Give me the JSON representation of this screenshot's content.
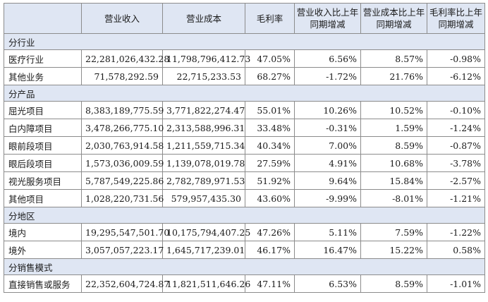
{
  "headers": [
    "",
    "营业收入",
    "营业成本",
    "毛利率",
    "营业收入比上年同期增减",
    "营业成本比上年同期增减",
    "毛利率比上年同期增减"
  ],
  "sections": [
    {
      "title": "分行业",
      "rows": [
        [
          "医疗行业",
          "22,281,026,432.28",
          "11,798,796,412.73",
          "47.05%",
          "6.56%",
          "8.57%",
          "-0.98%"
        ],
        [
          "其他业务",
          "71,578,292.59",
          "22,715,233.53",
          "68.27%",
          "-1.72%",
          "21.76%",
          "-6.12%"
        ]
      ]
    },
    {
      "title": "分产品",
      "rows": [
        [
          "屈光项目",
          "8,383,189,775.59",
          "3,771,822,274.47",
          "55.01%",
          "10.26%",
          "10.52%",
          "-0.10%"
        ],
        [
          "白内障项目",
          "3,478,266,775.10",
          "2,313,588,996.31",
          "33.48%",
          "-0.31%",
          "1.59%",
          "-1.24%"
        ],
        [
          "眼前段项目",
          "2,030,763,914.58",
          "1,211,559,715.34",
          "40.34%",
          "7.00%",
          "8.59%",
          "-0.87%"
        ],
        [
          "眼后段项目",
          "1,573,036,009.59",
          "1,139,078,019.78",
          "27.59%",
          "4.91%",
          "10.68%",
          "-3.78%"
        ],
        [
          "视光服务项目",
          "5,787,549,225.86",
          "2,782,789,971.53",
          "51.92%",
          "9.64%",
          "15.84%",
          "-2.57%"
        ],
        [
          "其他项目",
          "1,028,220,731.56",
          "579,957,435.30",
          "43.60%",
          "-9.99%",
          "-8.01%",
          "-1.21%"
        ]
      ]
    },
    {
      "title": "分地区",
      "rows": [
        [
          "境内",
          "19,295,547,501.70",
          "10,175,794,407.25",
          "47.26%",
          "5.11%",
          "7.59%",
          "-1.22%"
        ],
        [
          "境外",
          "3,057,057,223.17",
          "1,645,717,239.01",
          "46.17%",
          "16.47%",
          "15.22%",
          "0.58%"
        ]
      ]
    },
    {
      "title": "分销售模式",
      "rows": [
        [
          "直接销售或服务",
          "22,352,604,724.87",
          "11,821,511,646.26",
          "47.11%",
          "6.53%",
          "8.59%",
          "-1.01%"
        ]
      ]
    }
  ]
}
